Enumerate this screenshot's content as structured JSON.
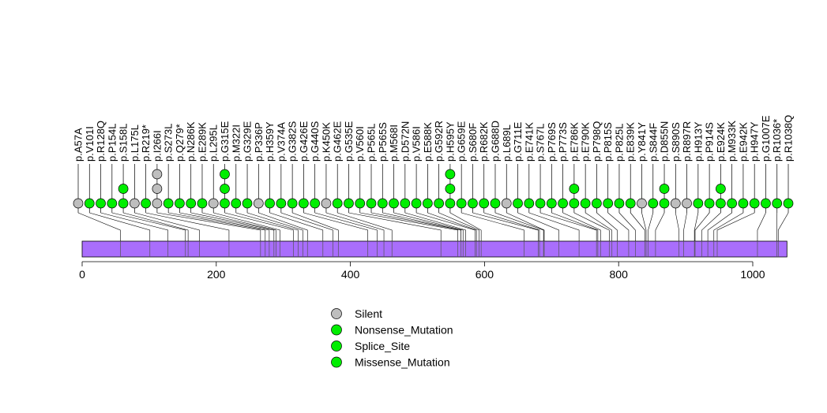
{
  "chart_data": {
    "type": "lollipop",
    "title": "",
    "xlabel": "",
    "ylabel": "",
    "protein_length": 1051,
    "x_ticks": [
      0,
      200,
      400,
      600,
      800,
      1000
    ],
    "colors": {
      "protein_bar": "#a96efc",
      "silent": "#bebebe",
      "mutation": "#00ee00"
    },
    "legend": [
      {
        "label": "Silent",
        "type": "silent"
      },
      {
        "label": "Nonsense_Mutation",
        "type": "nonsense"
      },
      {
        "label": "Splice_Site",
        "type": "splice"
      },
      {
        "label": "Missense_Mutation",
        "type": "missense"
      }
    ],
    "domain_boundaries": [
      57,
      101,
      128,
      154,
      158,
      175,
      219,
      266,
      273,
      279,
      286,
      289,
      295,
      315,
      322,
      329,
      336,
      359,
      374,
      382,
      426,
      440,
      450,
      462,
      535,
      560,
      565,
      568,
      572,
      586,
      588,
      592,
      595,
      659,
      680,
      682,
      688,
      689,
      711,
      741,
      767,
      769,
      773,
      786,
      790,
      798,
      815,
      825,
      839,
      841,
      844,
      855,
      890,
      897,
      913,
      914,
      924,
      933,
      942,
      947,
      1007,
      1036,
      1038
    ],
    "mutations": [
      {
        "label": "p.A57A",
        "pos": 57,
        "type": "silent",
        "stack": [
          "silent"
        ]
      },
      {
        "label": "p.V101I",
        "pos": 101,
        "type": "missense",
        "stack": [
          "mutation"
        ]
      },
      {
        "label": "p.R128Q",
        "pos": 128,
        "type": "missense",
        "stack": [
          "mutation"
        ]
      },
      {
        "label": "p.P154L",
        "pos": 154,
        "type": "missense",
        "stack": [
          "mutation"
        ]
      },
      {
        "label": "p.S158L",
        "pos": 158,
        "type": "missense",
        "stack": [
          "mutation",
          "mutation"
        ]
      },
      {
        "label": "p.L175L",
        "pos": 175,
        "type": "silent",
        "stack": [
          "silent"
        ]
      },
      {
        "label": "p.R219*",
        "pos": 219,
        "type": "nonsense",
        "stack": [
          "mutation"
        ]
      },
      {
        "label": "p.I266I",
        "pos": 266,
        "type": "silent",
        "stack": [
          "silent",
          "silent",
          "silent"
        ]
      },
      {
        "label": "p.S273L",
        "pos": 273,
        "type": "missense",
        "stack": [
          "mutation"
        ]
      },
      {
        "label": "p.Q279*",
        "pos": 279,
        "type": "nonsense",
        "stack": [
          "mutation"
        ]
      },
      {
        "label": "p.N286K",
        "pos": 286,
        "type": "missense",
        "stack": [
          "mutation"
        ]
      },
      {
        "label": "p.E289K",
        "pos": 289,
        "type": "missense",
        "stack": [
          "mutation"
        ]
      },
      {
        "label": "p.L295L",
        "pos": 295,
        "type": "silent",
        "stack": [
          "silent"
        ]
      },
      {
        "label": "p.G315E",
        "pos": 315,
        "type": "missense",
        "stack": [
          "mutation",
          "mutation",
          "mutation"
        ]
      },
      {
        "label": "p.M322I",
        "pos": 322,
        "type": "missense",
        "stack": [
          "mutation"
        ]
      },
      {
        "label": "p.G329E",
        "pos": 329,
        "type": "missense",
        "stack": [
          "mutation"
        ]
      },
      {
        "label": "p.P336P",
        "pos": 336,
        "type": "silent",
        "stack": [
          "silent"
        ]
      },
      {
        "label": "p.H359Y",
        "pos": 359,
        "type": "missense",
        "stack": [
          "mutation"
        ]
      },
      {
        "label": "p.V374A",
        "pos": 374,
        "type": "missense",
        "stack": [
          "mutation"
        ]
      },
      {
        "label": "p.G382S",
        "pos": 382,
        "type": "missense",
        "stack": [
          "mutation"
        ]
      },
      {
        "label": "p.G426E",
        "pos": 426,
        "type": "missense",
        "stack": [
          "mutation"
        ]
      },
      {
        "label": "p.G440S",
        "pos": 440,
        "type": "missense",
        "stack": [
          "mutation"
        ]
      },
      {
        "label": "p.K450K",
        "pos": 450,
        "type": "silent",
        "stack": [
          "silent"
        ]
      },
      {
        "label": "p.G462E",
        "pos": 462,
        "type": "missense",
        "stack": [
          "mutation"
        ]
      },
      {
        "label": "p.G535E",
        "pos": 535,
        "type": "missense",
        "stack": [
          "mutation"
        ]
      },
      {
        "label": "p.V560I",
        "pos": 560,
        "type": "missense",
        "stack": [
          "mutation"
        ]
      },
      {
        "label": "p.P565L",
        "pos": 565,
        "type": "missense",
        "stack": [
          "mutation"
        ]
      },
      {
        "label": "p.P565S",
        "pos": 565,
        "type": "missense",
        "stack": [
          "mutation"
        ]
      },
      {
        "label": "p.M568I",
        "pos": 568,
        "type": "missense",
        "stack": [
          "mutation"
        ]
      },
      {
        "label": "p.D572N",
        "pos": 572,
        "type": "missense",
        "stack": [
          "mutation"
        ]
      },
      {
        "label": "p.V586I",
        "pos": 586,
        "type": "missense",
        "stack": [
          "mutation"
        ]
      },
      {
        "label": "p.E588K",
        "pos": 588,
        "type": "missense",
        "stack": [
          "mutation"
        ]
      },
      {
        "label": "p.G592R",
        "pos": 592,
        "type": "missense",
        "stack": [
          "mutation"
        ]
      },
      {
        "label": "p.H595Y",
        "pos": 595,
        "type": "missense",
        "stack": [
          "mutation",
          "mutation",
          "mutation"
        ]
      },
      {
        "label": "p.G659E",
        "pos": 659,
        "type": "missense",
        "stack": [
          "mutation"
        ]
      },
      {
        "label": "p.S680F",
        "pos": 680,
        "type": "missense",
        "stack": [
          "mutation"
        ]
      },
      {
        "label": "p.R682K",
        "pos": 682,
        "type": "missense",
        "stack": [
          "mutation"
        ]
      },
      {
        "label": "p.G688D",
        "pos": 688,
        "type": "missense",
        "stack": [
          "mutation"
        ]
      },
      {
        "label": "p.L689L",
        "pos": 689,
        "type": "silent",
        "stack": [
          "silent"
        ]
      },
      {
        "label": "p.G711E",
        "pos": 711,
        "type": "missense",
        "stack": [
          "mutation"
        ]
      },
      {
        "label": "p.E741K",
        "pos": 741,
        "type": "missense",
        "stack": [
          "mutation"
        ]
      },
      {
        "label": "p.S767L",
        "pos": 767,
        "type": "missense",
        "stack": [
          "mutation"
        ]
      },
      {
        "label": "p.P769S",
        "pos": 769,
        "type": "missense",
        "stack": [
          "mutation"
        ]
      },
      {
        "label": "p.P773S",
        "pos": 773,
        "type": "missense",
        "stack": [
          "mutation"
        ]
      },
      {
        "label": "p.E786K",
        "pos": 786,
        "type": "missense",
        "stack": [
          "mutation",
          "mutation"
        ]
      },
      {
        "label": "p.E790K",
        "pos": 790,
        "type": "missense",
        "stack": [
          "mutation"
        ]
      },
      {
        "label": "p.P798Q",
        "pos": 798,
        "type": "missense",
        "stack": [
          "mutation"
        ]
      },
      {
        "label": "p.P815S",
        "pos": 815,
        "type": "missense",
        "stack": [
          "mutation"
        ]
      },
      {
        "label": "p.P825L",
        "pos": 825,
        "type": "missense",
        "stack": [
          "mutation"
        ]
      },
      {
        "label": "p.E839K",
        "pos": 839,
        "type": "missense",
        "stack": [
          "mutation"
        ]
      },
      {
        "label": "p.Y841Y",
        "pos": 841,
        "type": "silent",
        "stack": [
          "silent"
        ]
      },
      {
        "label": "p.S844F",
        "pos": 844,
        "type": "missense",
        "stack": [
          "mutation"
        ]
      },
      {
        "label": "p.D855N",
        "pos": 855,
        "type": "missense",
        "stack": [
          "mutation",
          "mutation"
        ]
      },
      {
        "label": "p.S890S",
        "pos": 890,
        "type": "silent",
        "stack": [
          "silent"
        ]
      },
      {
        "label": "p.R897R",
        "pos": 897,
        "type": "silent",
        "stack": [
          "silent"
        ]
      },
      {
        "label": "p.H913Y",
        "pos": 913,
        "type": "missense",
        "stack": [
          "mutation"
        ]
      },
      {
        "label": "p.P914S",
        "pos": 914,
        "type": "missense",
        "stack": [
          "mutation"
        ]
      },
      {
        "label": "p.E924K",
        "pos": 924,
        "type": "missense",
        "stack": [
          "mutation",
          "mutation"
        ]
      },
      {
        "label": "p.M933K",
        "pos": 933,
        "type": "missense",
        "stack": [
          "mutation"
        ]
      },
      {
        "label": "p.E942K",
        "pos": 942,
        "type": "missense",
        "stack": [
          "mutation"
        ]
      },
      {
        "label": "p.H947Y",
        "pos": 947,
        "type": "missense",
        "stack": [
          "mutation"
        ]
      },
      {
        "label": "p.G1007E",
        "pos": 1007,
        "type": "missense",
        "stack": [
          "mutation"
        ]
      },
      {
        "label": "p.R1036*",
        "pos": 1036,
        "type": "nonsense",
        "stack": [
          "mutation"
        ]
      },
      {
        "label": "p.R1038Q",
        "pos": 1038,
        "type": "missense",
        "stack": [
          "mutation"
        ]
      }
    ]
  }
}
